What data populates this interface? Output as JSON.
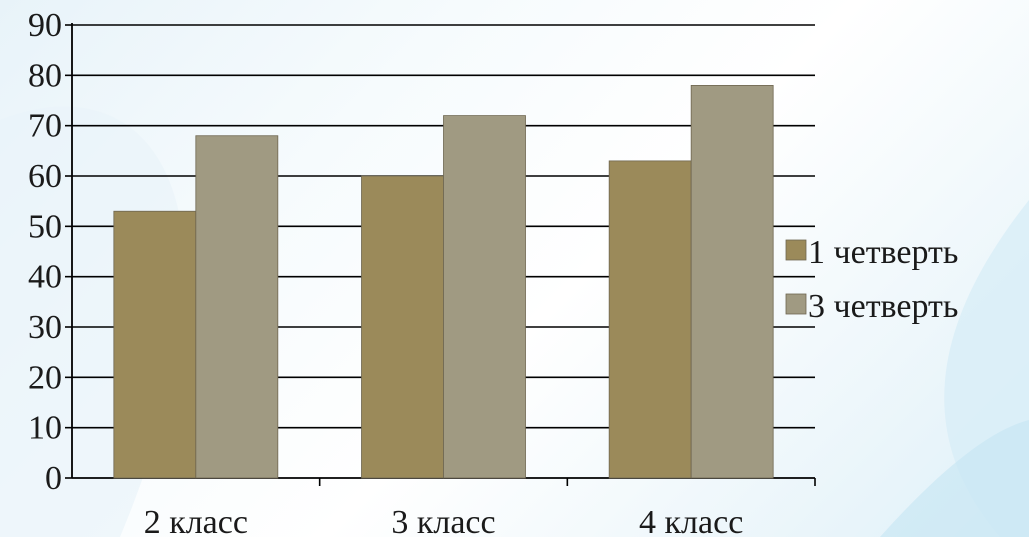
{
  "chart_data": {
    "type": "bar",
    "categories": [
      "2 класс",
      "3 класс",
      "4 класс"
    ],
    "series": [
      {
        "name": "1 четверть",
        "values": [
          53,
          60,
          63
        ],
        "color": "#9b8a5a"
      },
      {
        "name": "3 четверть",
        "values": [
          68,
          72,
          78
        ],
        "color": "#a09a82"
      }
    ],
    "ylim": [
      0,
      90
    ],
    "yticks": [
      "0",
      "10",
      "20",
      "30",
      "40",
      "50",
      "60",
      "70",
      "80",
      "90"
    ],
    "grid": true,
    "legend_position": "right"
  }
}
